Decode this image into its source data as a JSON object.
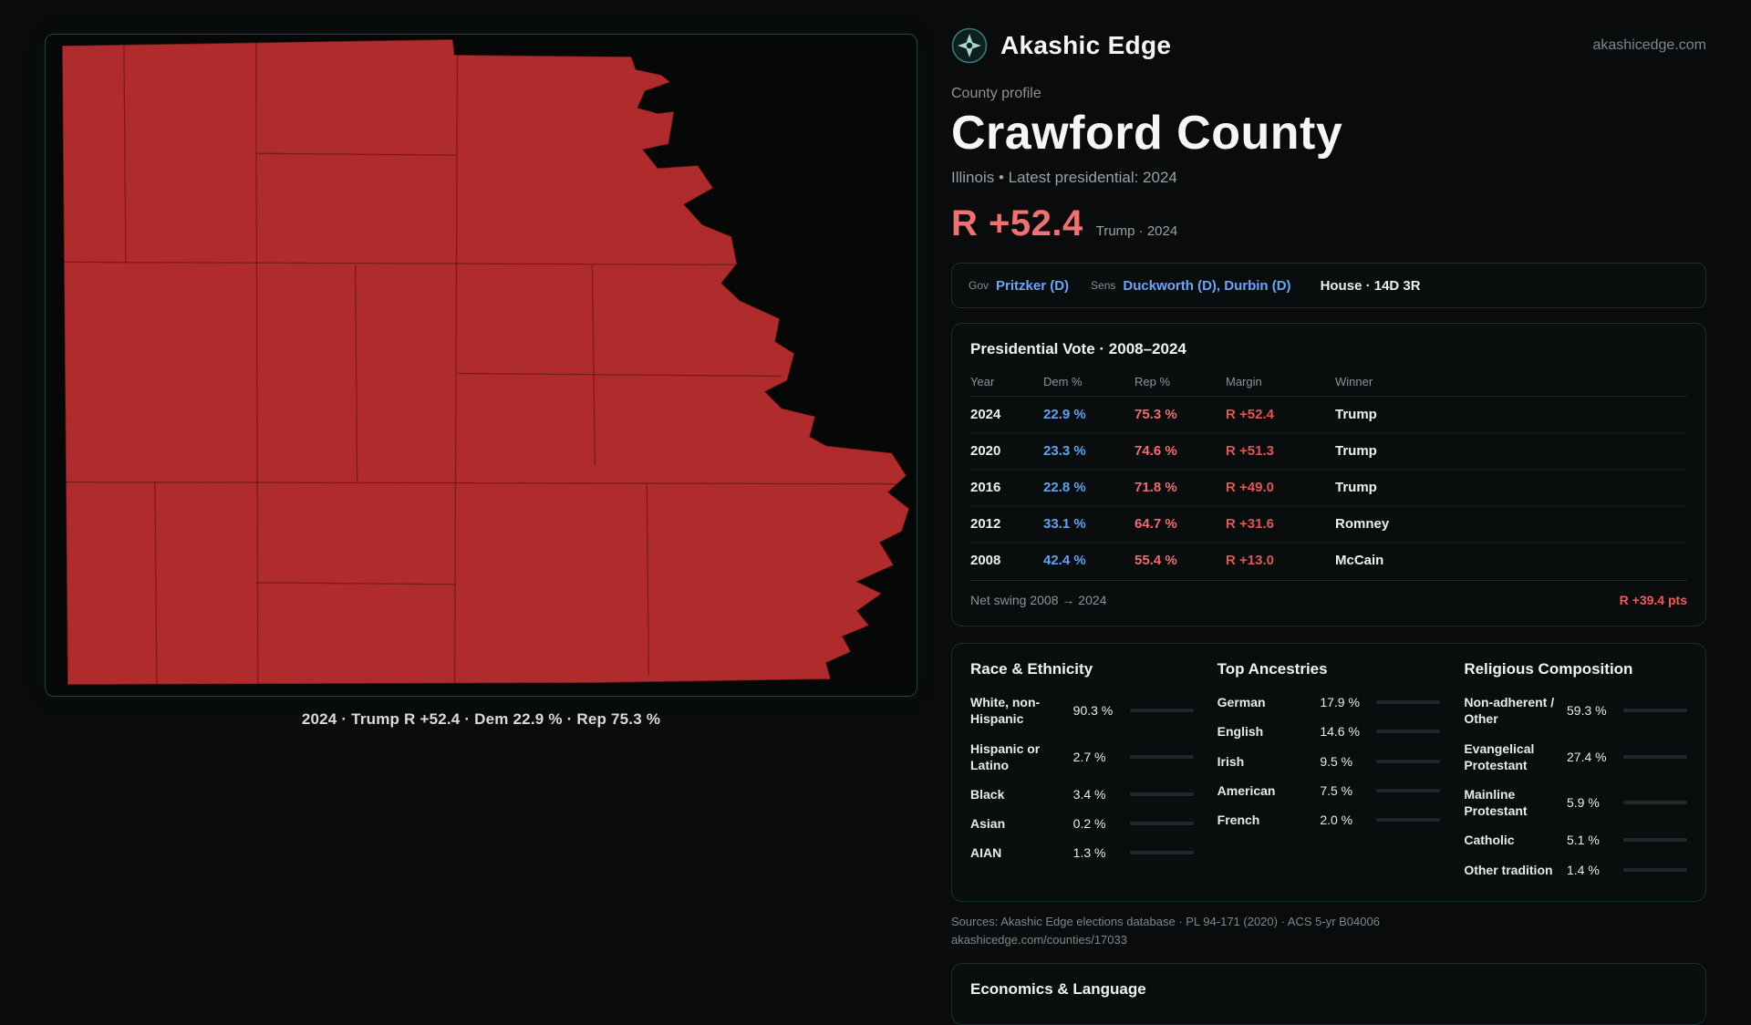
{
  "colors": {
    "map_fill": "#b02b2b",
    "accent_red": "#f37070",
    "dem_blue": "#5ea2f0",
    "link_blue": "#6aa6f8"
  },
  "map": {
    "caption": "2024 · Trump R +52.4 · Dem 22.9 % · Rep 75.3 %"
  },
  "header": {
    "brand": "Akashic Edge",
    "site": "akashicedge.com"
  },
  "profile": {
    "kicker": "County profile",
    "title": "Crawford County",
    "subtitle": "Illinois • Latest presidential: 2024",
    "margin": "R +52.4",
    "margin_note": "Trump · 2024"
  },
  "officials": {
    "gov_label": "Gov",
    "gov": "Pritzker (D)",
    "sens_label": "Sens",
    "sens": "Duckworth (D), Durbin (D)",
    "house": "House · 14D 3R"
  },
  "presidential": {
    "title": "Presidential Vote · 2008–2024",
    "columns": [
      "Year",
      "Dem %",
      "Rep %",
      "Margin",
      "Winner"
    ],
    "rows": [
      {
        "year": "2024",
        "dem": "22.9 %",
        "rep": "75.3 %",
        "margin": "R +52.4",
        "winner": "Trump"
      },
      {
        "year": "2020",
        "dem": "23.3 %",
        "rep": "74.6 %",
        "margin": "R +51.3",
        "winner": "Trump"
      },
      {
        "year": "2016",
        "dem": "22.8 %",
        "rep": "71.8 %",
        "margin": "R +49.0",
        "winner": "Trump"
      },
      {
        "year": "2012",
        "dem": "33.1 %",
        "rep": "64.7 %",
        "margin": "R +31.6",
        "winner": "Romney"
      },
      {
        "year": "2008",
        "dem": "42.4 %",
        "rep": "55.4 %",
        "margin": "R +13.0",
        "winner": "McCain"
      }
    ],
    "net_swing_label": "Net swing 2008 → 2024",
    "net_swing_value": "R +39.4 pts"
  },
  "demographics": {
    "race": {
      "title": "Race & Ethnicity",
      "items": [
        {
          "label": "White, non-Hispanic",
          "value": "90.3 %",
          "pct": 90.3,
          "color": "#aeb6cc"
        },
        {
          "label": "Hispanic or Latino",
          "value": "2.7 %",
          "pct": 2.7,
          "color": "#e05b5b"
        },
        {
          "label": "Black",
          "value": "3.4 %",
          "pct": 3.4,
          "color": "#6b86d8"
        },
        {
          "label": "Asian",
          "value": "0.2 %",
          "pct": 0.2,
          "color": "#9aa0aa"
        },
        {
          "label": "AIAN",
          "value": "1.3 %",
          "pct": 1.3,
          "color": "#e05b5b"
        }
      ]
    },
    "ancestries": {
      "title": "Top Ancestries",
      "items": [
        {
          "label": "German",
          "value": "17.9 %",
          "pct": 17.9,
          "color": "#9aa0aa"
        },
        {
          "label": "English",
          "value": "14.6 %",
          "pct": 14.6,
          "color": "#9aa0aa"
        },
        {
          "label": "Irish",
          "value": "9.5 %",
          "pct": 9.5,
          "color": "#9aa0aa"
        },
        {
          "label": "American",
          "value": "7.5 %",
          "pct": 7.5,
          "color": "#9aa0aa"
        },
        {
          "label": "French",
          "value": "2.0 %",
          "pct": 2.0,
          "color": "#9aa0aa"
        }
      ]
    },
    "religion": {
      "title": "Religious Composition",
      "items": [
        {
          "label": "Non-adherent / Other",
          "value": "59.3 %",
          "pct": 59.3,
          "color": "#8b94a3"
        },
        {
          "label": "Evangelical Protestant",
          "value": "27.4 %",
          "pct": 27.4,
          "color": "#e06060"
        },
        {
          "label": "Mainline Protestant",
          "value": "5.9 %",
          "pct": 5.9,
          "color": "#5b8def"
        },
        {
          "label": "Catholic",
          "value": "5.1 %",
          "pct": 5.1,
          "color": "#dca73a"
        },
        {
          "label": "Other tradition",
          "value": "1.4 %",
          "pct": 1.4,
          "color": "#9aa0aa"
        }
      ]
    }
  },
  "sources": {
    "line1": "Sources: Akashic Edge elections database · PL 94-171 (2020) · ACS 5-yr B04006",
    "line2": "akashicedge.com/counties/17033"
  },
  "economics": {
    "title": "Economics & Language"
  }
}
